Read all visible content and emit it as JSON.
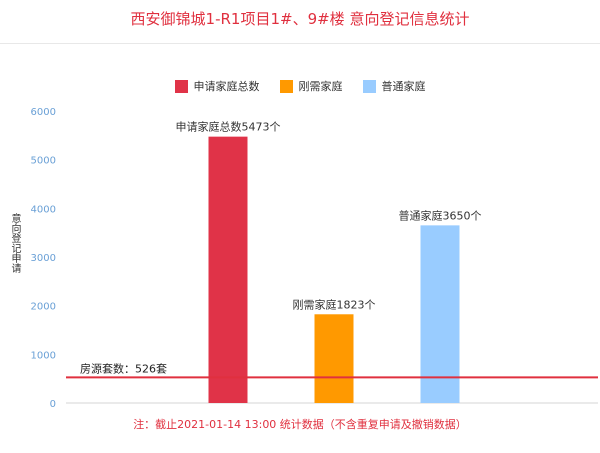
{
  "title": "西安御锦城1-R1项目1#、9#楼 意向登记信息统计",
  "footnote": "注：截止2021-01-14 13:00 统计数据（不含重复申请及撤销数据）",
  "chart_data": {
    "type": "bar",
    "ylabel": "意向登记申请",
    "ylim": [
      0,
      6000
    ],
    "yticks": [
      0,
      1000,
      2000,
      3000,
      4000,
      5000,
      6000
    ],
    "grid": false,
    "legend_position": "top",
    "series": [
      {
        "name": "申请家庭总数",
        "value": 5473,
        "color": "#e03348",
        "label": "申请家庭总数5473个"
      },
      {
        "name": "刚需家庭",
        "value": 1823,
        "color": "#ff9900",
        "label": "刚需家庭1823个"
      },
      {
        "name": "普通家庭",
        "value": 3650,
        "color": "#99ccff",
        "label": "普通家庭3650个"
      }
    ],
    "reference_line": {
      "value": 526,
      "color": "#e0303f",
      "label": "房源套数：526套"
    }
  }
}
